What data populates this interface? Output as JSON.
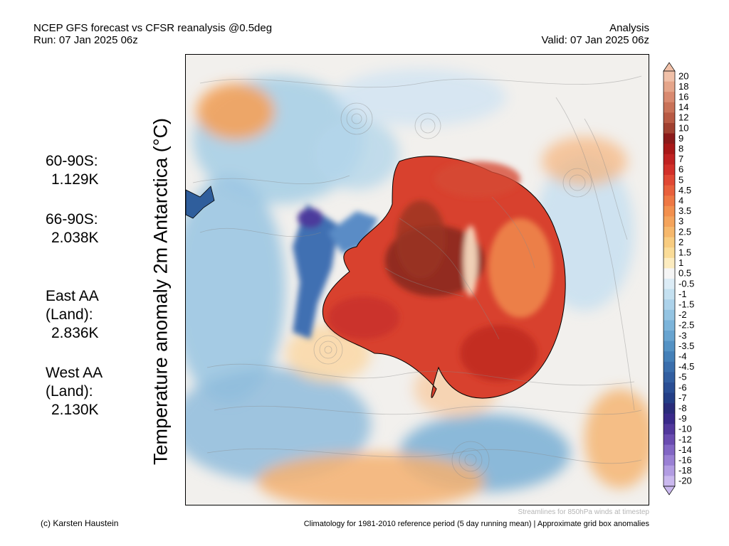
{
  "header": {
    "left_line1": "NCEP GFS forecast vs CFSR reanalysis @0.5deg",
    "left_line2": "Run: 07 Jan 2025 06z",
    "right_line1": "Analysis",
    "right_line2": "Valid: 07 Jan 2025 06z"
  },
  "title": "Temperature anomaly 2m Antarctica (°C)",
  "stats": [
    {
      "label": "60-90S:",
      "value": "1.129K"
    },
    {
      "label": "66-90S:",
      "value": "2.038K"
    },
    {
      "label": "East AA\n(Land):",
      "value": "2.836K"
    },
    {
      "label": "West AA\n(Land):",
      "value": "2.130K"
    }
  ],
  "legend": {
    "labels": [
      "20",
      "18",
      "16",
      "14",
      "12",
      "10",
      "9",
      "8",
      "7",
      "6",
      "5",
      "4.5",
      "4",
      "3.5",
      "3",
      "2.5",
      "2",
      "1.5",
      "1",
      "0.5",
      "-0.5",
      "-1",
      "-1.5",
      "-2",
      "-2.5",
      "-3",
      "-3.5",
      "-4",
      "-4.5",
      "-5",
      "-6",
      "-7",
      "-8",
      "-9",
      "-10",
      "-12",
      "-14",
      "-16",
      "-18",
      "-20"
    ],
    "colors": [
      "#f0c0a8",
      "#e5a58a",
      "#d98a70",
      "#c97258",
      "#b85a44",
      "#a04030",
      "#8b1a1a",
      "#a81818",
      "#c02222",
      "#d2302a",
      "#e04834",
      "#e8603c",
      "#ee7844",
      "#f2904e",
      "#f4a45c",
      "#f6b86c",
      "#f8cc80",
      "#fadc98",
      "#fcecc0",
      "#f5f5f5",
      "#dcecf6",
      "#c4e0f0",
      "#acd2ea",
      "#94c4e2",
      "#7cb4da",
      "#68a4d0",
      "#5492c4",
      "#4480b8",
      "#3a6eac",
      "#325ea0",
      "#2a4e94",
      "#243e86",
      "#2a2c7a",
      "#3a2a8a",
      "#52389c",
      "#6a4cb0",
      "#8266c4",
      "#9a80d4",
      "#b29ce2",
      "#cab8ee"
    ]
  },
  "footer": {
    "copyright": "(c) Karsten Haustein",
    "climatology": "Climatology for 1981-2010 reference period (5 day running mean) | Approximate grid box anomalies",
    "streamlines_note": "Streamlines for 850hPa winds at timestep"
  }
}
